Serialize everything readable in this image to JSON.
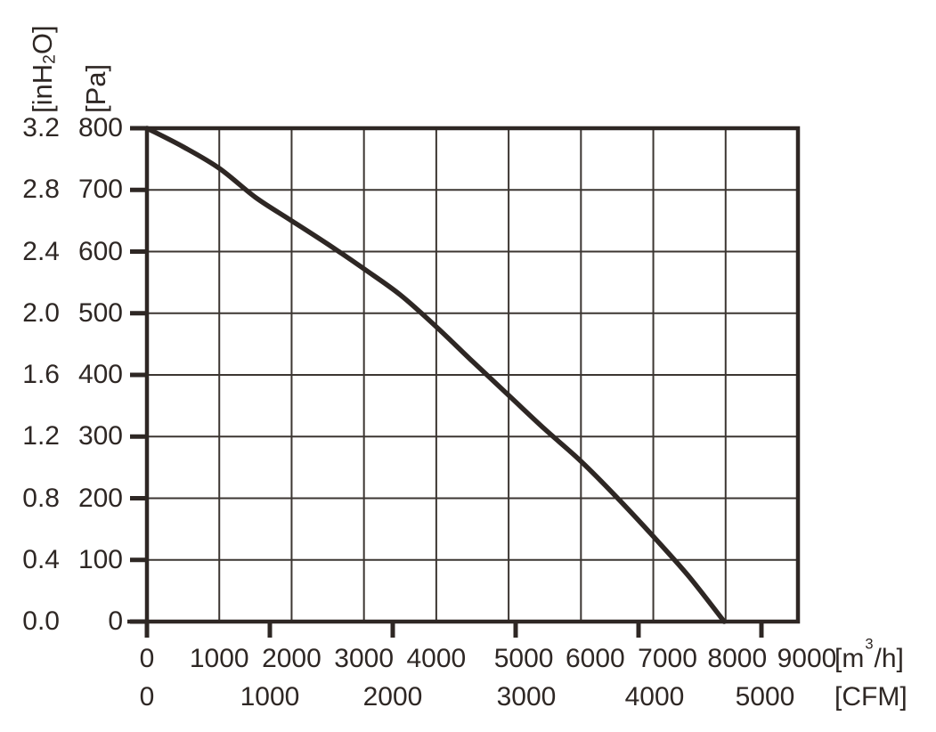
{
  "meta": {
    "background_color": "#ffffff",
    "ink_color": "#2e2724",
    "grid_color": "#3c3632"
  },
  "chart_data": {
    "type": "line",
    "title": "",
    "grid": true,
    "x_axis": {
      "unit_label": {
        "pre": "[m",
        "sup": "3",
        "post": "/h]"
      },
      "ticks": [
        "0",
        "1000",
        "2000",
        "3000",
        "4000",
        "5000",
        "6000",
        "7000",
        "8000",
        "9000"
      ],
      "min": 0,
      "max": 9000
    },
    "x_axis_secondary": {
      "unit_label": "[CFM]",
      "ticks": [
        "0",
        "1000",
        "2000",
        "3000",
        "4000",
        "5000"
      ],
      "min": 0,
      "max": 5000,
      "m3h_per_cfm": 1.699
    },
    "y_axis": {
      "unit_label": "[Pa]",
      "ticks": [
        "800",
        "700",
        "600",
        "500",
        "400",
        "300",
        "200",
        "100",
        "0"
      ],
      "min": 0,
      "max": 800
    },
    "y_axis_secondary": {
      "unit_label": {
        "pre": "[inH",
        "sub": "2",
        "post": "O]"
      },
      "ticks": [
        "3.2",
        "2.8",
        "2.4",
        "2.0",
        "1.6",
        "1.2",
        "0.8",
        "0.4",
        "0.0"
      ]
    },
    "series": [
      {
        "name": "static-pressure-curve",
        "points_m3h_pa": [
          [
            0,
            800
          ],
          [
            500,
            770
          ],
          [
            1000,
            735
          ],
          [
            1500,
            688
          ],
          [
            2000,
            650
          ],
          [
            2500,
            612
          ],
          [
            3000,
            572
          ],
          [
            3500,
            530
          ],
          [
            4000,
            478
          ],
          [
            4500,
            422
          ],
          [
            5000,
            367
          ],
          [
            5500,
            312
          ],
          [
            6000,
            260
          ],
          [
            6500,
            201
          ],
          [
            7000,
            138
          ],
          [
            7500,
            72
          ],
          [
            7980,
            0
          ]
        ]
      }
    ]
  }
}
